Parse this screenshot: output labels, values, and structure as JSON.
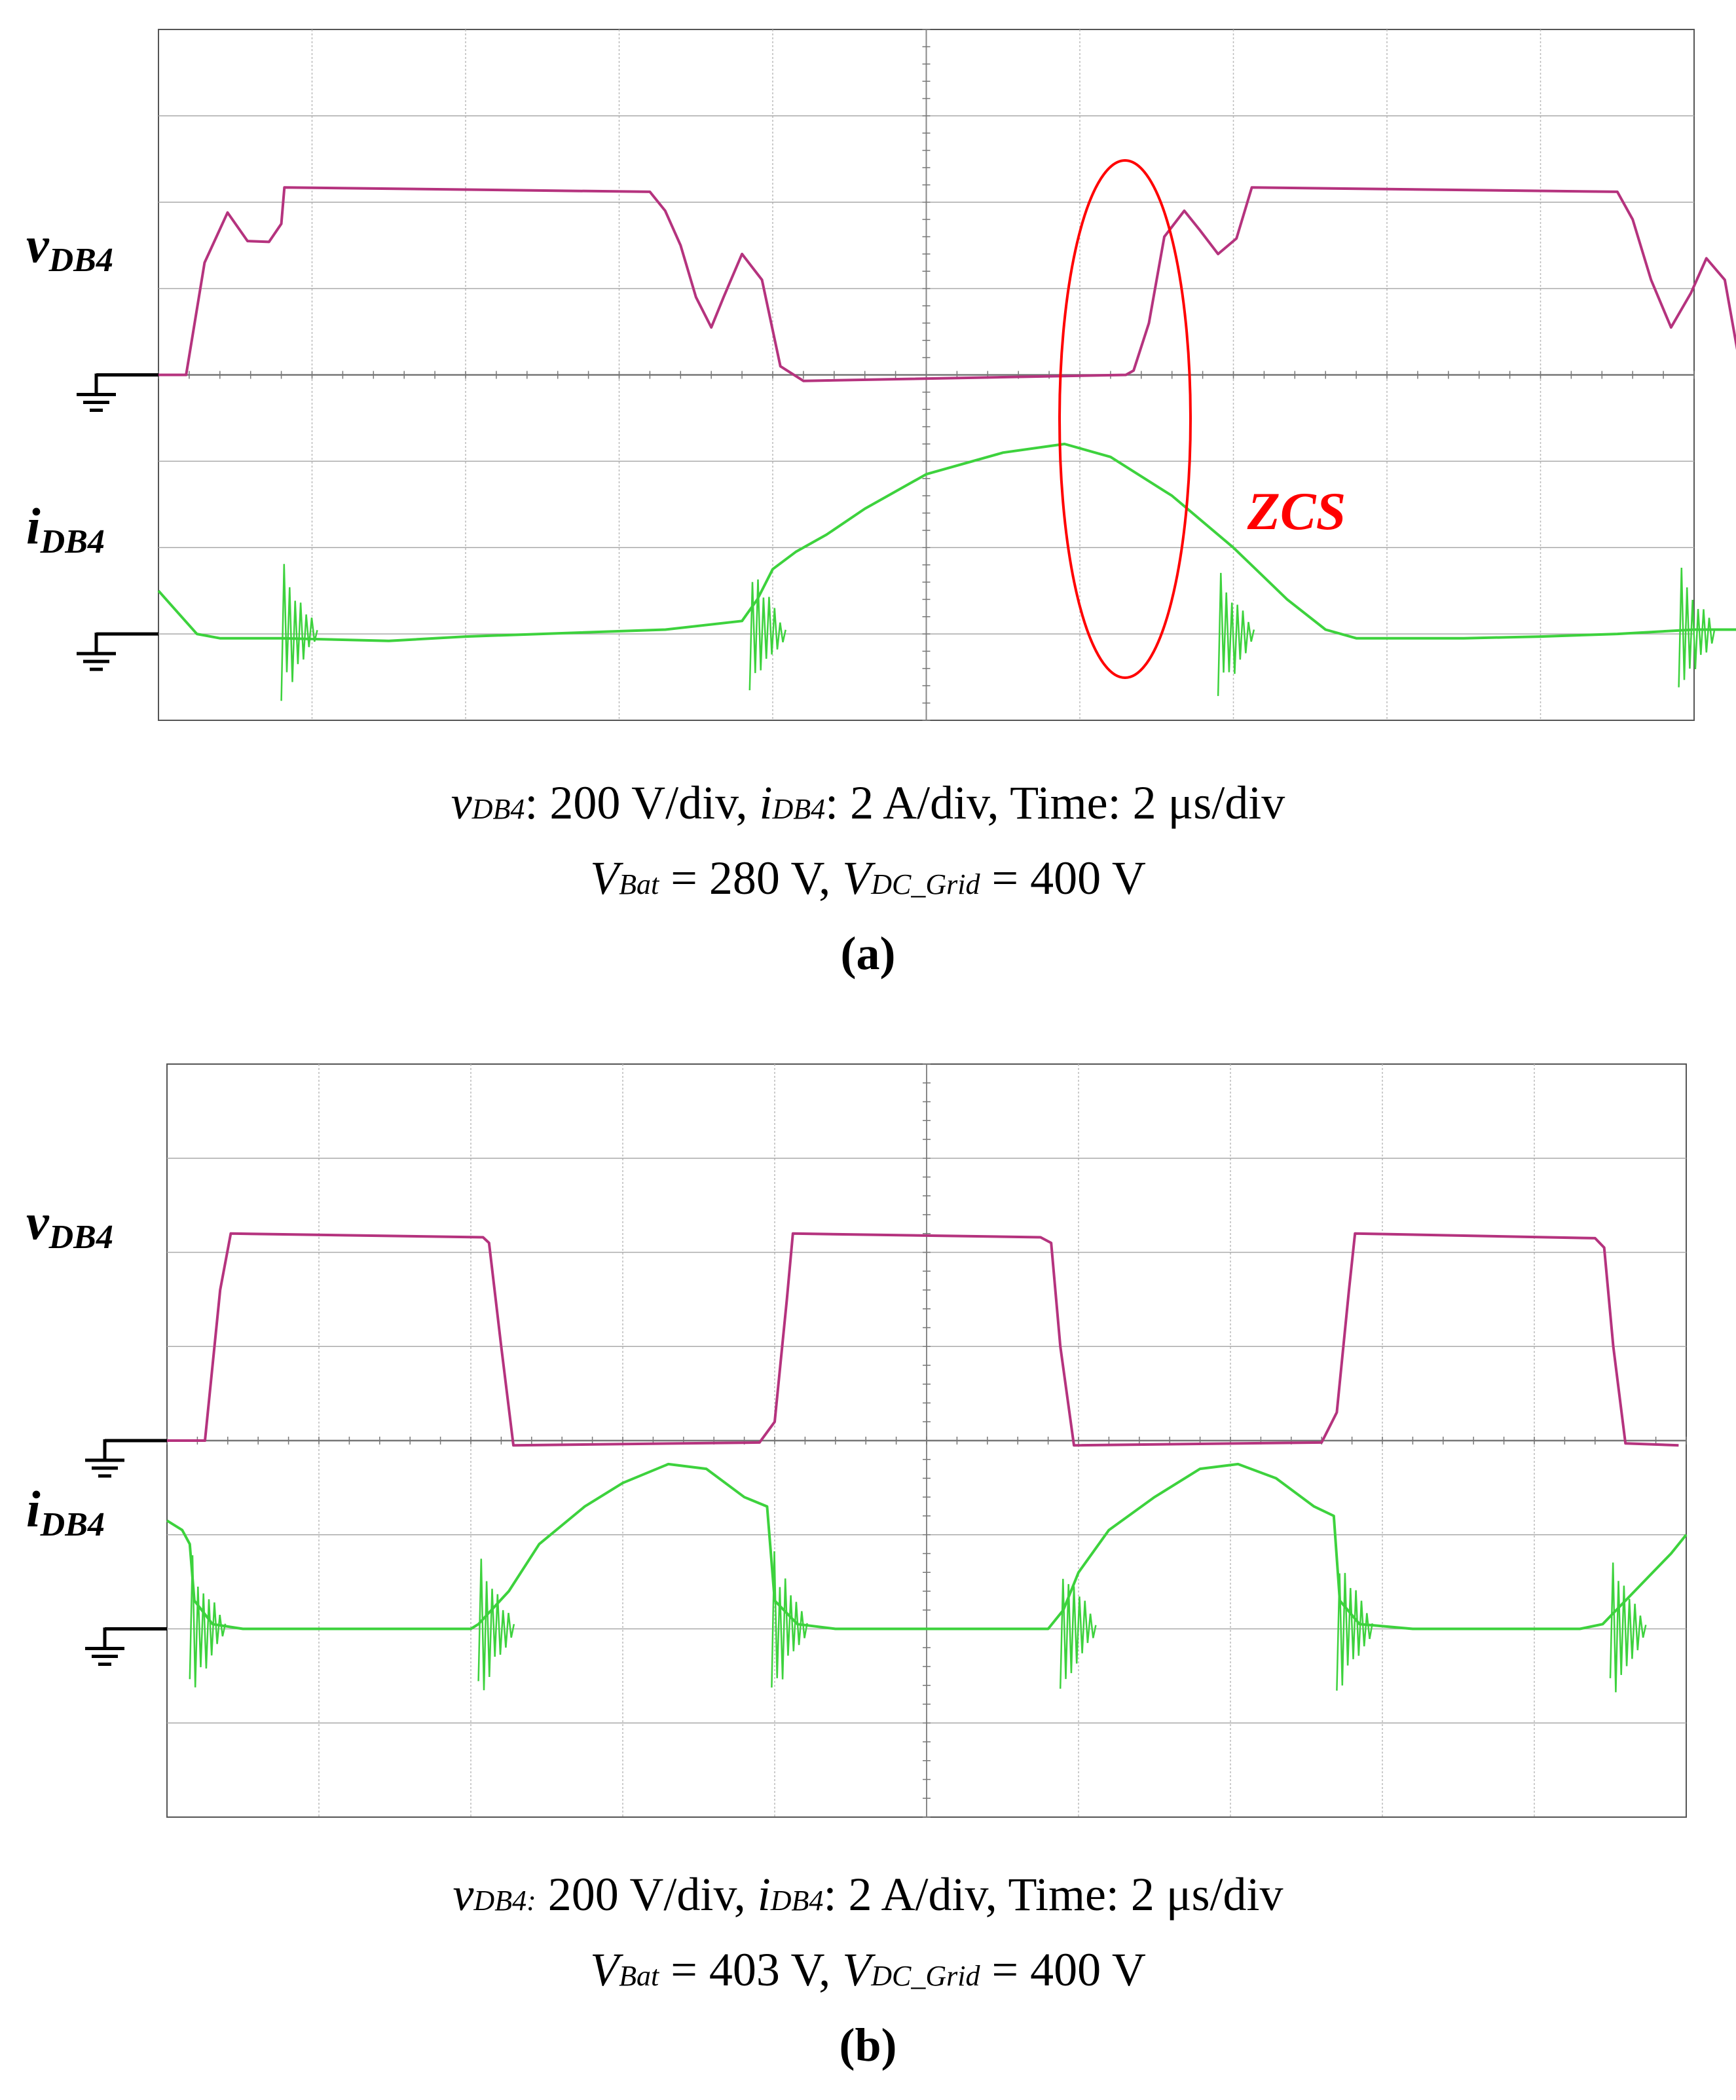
{
  "chart_data": [
    {
      "type": "line",
      "panel_label": "(a)",
      "x_div": 10,
      "y_div": 8,
      "grid": true,
      "legend": "none",
      "time_per_div": "2 μs/div",
      "series": [
        {
          "name": "vDB4",
          "label_main": "v",
          "label_sub": "DB4",
          "color": "#b5337e",
          "unit": "V",
          "scale": 200,
          "zero_div": 4.0,
          "points": [
            [
              0,
              0
            ],
            [
              0.18,
              0
            ],
            [
              0.3,
              1.3
            ],
            [
              0.45,
              1.88
            ],
            [
              0.58,
              1.55
            ],
            [
              0.72,
              1.54
            ],
            [
              0.8,
              1.75
            ],
            [
              0.82,
              2.17
            ],
            [
              3.2,
              2.12
            ],
            [
              3.3,
              1.9
            ],
            [
              3.4,
              1.5
            ],
            [
              3.5,
              0.9
            ],
            [
              3.6,
              0.55
            ],
            [
              3.68,
              0.9
            ],
            [
              3.8,
              1.4
            ],
            [
              3.93,
              1.1
            ],
            [
              4.05,
              0.1
            ],
            [
              4.2,
              -0.07
            ],
            [
              6.3,
              0
            ],
            [
              6.35,
              0.05
            ],
            [
              6.45,
              0.6
            ],
            [
              6.55,
              1.6
            ],
            [
              6.68,
              1.9
            ],
            [
              6.78,
              1.68
            ],
            [
              6.9,
              1.4
            ],
            [
              7.02,
              1.58
            ],
            [
              7.12,
              2.17
            ],
            [
              9.5,
              2.12
            ],
            [
              9.6,
              1.8
            ],
            [
              9.72,
              1.1
            ],
            [
              9.85,
              0.55
            ],
            [
              9.98,
              0.95
            ],
            [
              10.08,
              1.35
            ],
            [
              10.2,
              1.1
            ],
            [
              10.3,
              0.1
            ],
            [
              10.42,
              -0.05
            ]
          ]
        },
        {
          "name": "iDB4",
          "label_main": "i",
          "label_sub": "DB4",
          "color": "#3dd23d",
          "unit": "A",
          "scale": 2,
          "zero_div": 1.0,
          "points": [
            [
              0,
              0.5
            ],
            [
              0.15,
              0.2
            ],
            [
              0.25,
              0
            ],
            [
              0.4,
              -0.05
            ],
            [
              0.8,
              -0.05
            ],
            [
              1.5,
              -0.08
            ],
            [
              2,
              -0.03
            ],
            [
              3.3,
              0.05
            ],
            [
              3.8,
              0.15
            ],
            [
              3.9,
              0.4
            ],
            [
              4,
              0.75
            ],
            [
              4.15,
              0.95
            ],
            [
              4.35,
              1.15
            ],
            [
              4.6,
              1.45
            ],
            [
              5,
              1.85
            ],
            [
              5.5,
              2.1
            ],
            [
              5.9,
              2.2
            ],
            [
              6.2,
              2.05
            ],
            [
              6.6,
              1.6
            ],
            [
              7,
              1
            ],
            [
              7.35,
              0.4
            ],
            [
              7.6,
              0.05
            ],
            [
              7.8,
              -0.05
            ],
            [
              8,
              -0.05
            ],
            [
              8.5,
              -0.05
            ],
            [
              9,
              -0.03
            ],
            [
              9.5,
              0
            ],
            [
              10,
              0.05
            ],
            [
              10.3,
              0.05
            ]
          ]
        }
      ],
      "annotations": [
        {
          "text": "ZCS",
          "color": "#ff0000"
        }
      ],
      "caption_line1": {
        "v_main": "v",
        "v_sub": "DB4",
        "v_scale": ": 200 V/div, ",
        "i_main": "i",
        "i_sub": "DB4",
        "i_scale": ": 2 A/div, Time: 2 μs/div"
      },
      "caption_line2": {
        "bat_main": "V",
        "bat_sub": "Bat",
        "bat_val": " = 280 V, ",
        "grid_main": "V",
        "grid_sub": "DC_Grid",
        "grid_val": " = 400 V"
      }
    },
    {
      "type": "line",
      "panel_label": "(b)",
      "x_div": 10,
      "y_div": 8,
      "grid": true,
      "legend": "none",
      "time_per_div": "2 μs/div",
      "series": [
        {
          "name": "vDB4",
          "label_main": "v",
          "label_sub": "DB4",
          "color": "#b5337e",
          "unit": "V",
          "scale": 200,
          "zero_div": 4.0,
          "points": [
            [
              0,
              0
            ],
            [
              0.25,
              0
            ],
            [
              0.35,
              1.6
            ],
            [
              0.42,
              2.2
            ],
            [
              2.08,
              2.16
            ],
            [
              2.12,
              2.1
            ],
            [
              2.2,
              1
            ],
            [
              2.28,
              -0.05
            ],
            [
              3.9,
              -0.02
            ],
            [
              4,
              0.2
            ],
            [
              4.08,
              1.5
            ],
            [
              4.12,
              2.2
            ],
            [
              5.75,
              2.16
            ],
            [
              5.82,
              2.1
            ],
            [
              5.88,
              1
            ],
            [
              5.97,
              -0.05
            ],
            [
              7.6,
              -0.02
            ],
            [
              7.7,
              0.3
            ],
            [
              7.78,
              1.6
            ],
            [
              7.82,
              2.2
            ],
            [
              9.4,
              2.15
            ],
            [
              9.46,
              2.05
            ],
            [
              9.52,
              1
            ],
            [
              9.6,
              -0.03
            ],
            [
              9.95,
              -0.05
            ]
          ]
        },
        {
          "name": "iDB4",
          "label_main": "i",
          "label_sub": "DB4",
          "color": "#3dd23d",
          "unit": "A",
          "scale": 2,
          "zero_div": 2.0,
          "points": [
            [
              0,
              1.15
            ],
            [
              0.1,
              1.05
            ],
            [
              0.15,
              0.9
            ],
            [
              0.18,
              0.3
            ],
            [
              0.3,
              0.05
            ],
            [
              0.5,
              0
            ],
            [
              1.5,
              0
            ],
            [
              2,
              0
            ],
            [
              2.05,
              0.05
            ],
            [
              2.25,
              0.4
            ],
            [
              2.45,
              0.9
            ],
            [
              2.75,
              1.3
            ],
            [
              3.0,
              1.55
            ],
            [
              3.3,
              1.75
            ],
            [
              3.55,
              1.7
            ],
            [
              3.8,
              1.4
            ],
            [
              3.95,
              1.3
            ],
            [
              4.0,
              0.3
            ],
            [
              4.15,
              0.05
            ],
            [
              4.4,
              0
            ],
            [
              5.5,
              0
            ],
            [
              5.8,
              0
            ],
            [
              5.9,
              0.2
            ],
            [
              6.0,
              0.6
            ],
            [
              6.2,
              1.05
            ],
            [
              6.5,
              1.4
            ],
            [
              6.8,
              1.7
            ],
            [
              7.05,
              1.75
            ],
            [
              7.3,
              1.6
            ],
            [
              7.55,
              1.3
            ],
            [
              7.68,
              1.2
            ],
            [
              7.72,
              0.3
            ],
            [
              7.85,
              0.05
            ],
            [
              8.2,
              0
            ],
            [
              9.3,
              0
            ],
            [
              9.45,
              0.05
            ],
            [
              9.6,
              0.3
            ],
            [
              9.75,
              0.55
            ],
            [
              9.9,
              0.8
            ],
            [
              10,
              1.0
            ]
          ]
        }
      ],
      "annotations": [],
      "caption_line1": {
        "v_main": "v",
        "v_sub": "DB4:",
        "v_scale": " 200 V/div, ",
        "i_main": "i",
        "i_sub": "DB4",
        "i_scale": ": 2 A/div, Time: 2 μs/div"
      },
      "caption_line2": {
        "bat_main": "V",
        "bat_sub": "Bat",
        "bat_val": " = 403 V, ",
        "grid_main": "V",
        "grid_sub": "DC_Grid",
        "grid_val": " = 400 V"
      }
    }
  ]
}
